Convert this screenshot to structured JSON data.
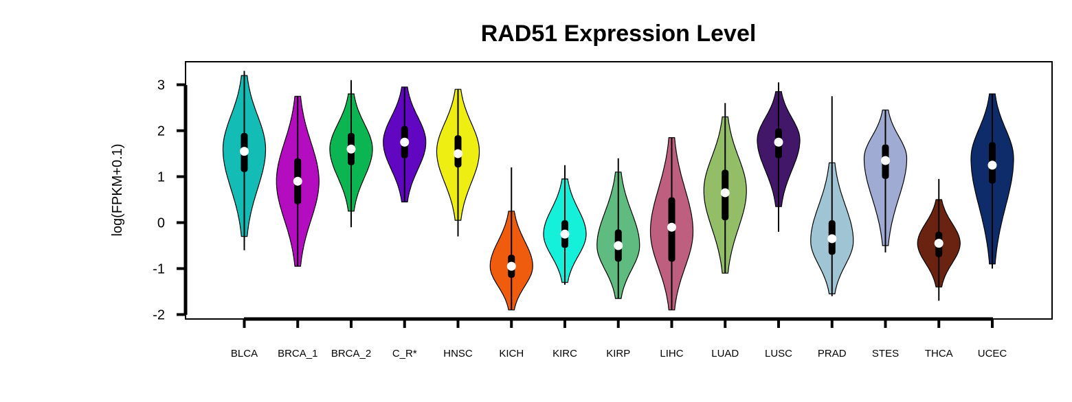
{
  "chart_data": {
    "type": "violin",
    "title": "RAD51 Expression Level",
    "ylabel": "log(FPKM+0.1)",
    "xlabel": "",
    "ylim": [
      -2,
      3
    ],
    "yticks": [
      "3",
      "2",
      "1",
      "0",
      "-1",
      "-2"
    ],
    "categories": [
      "BLCA",
      "BRCA_1",
      "BRCA_2",
      "C_R*",
      "HNSC",
      "KICH",
      "KIRC",
      "KIRP",
      "LIHC",
      "LUAD",
      "LUSC",
      "PRAD",
      "STES",
      "THCA",
      "UCEC"
    ],
    "colors": [
      "#14bcb6",
      "#b40cbf",
      "#0ab552",
      "#6107c2",
      "#eeee12",
      "#f05c0e",
      "#14f0d9",
      "#5fbb80",
      "#be5f80",
      "#93bd66",
      "#421668",
      "#9fc4d3",
      "#9fabd3",
      "#6a2310",
      "#0e2c6a"
    ],
    "violins": [
      {
        "min": -0.6,
        "max": 3.3,
        "q1": 1.1,
        "q3": 1.95,
        "median": 1.55,
        "vmin": -0.3,
        "vmax": 3.2,
        "mode": 1.6
      },
      {
        "min": -0.95,
        "max": 2.75,
        "q1": 0.4,
        "q3": 1.4,
        "median": 0.9,
        "vmin": -0.95,
        "vmax": 2.75,
        "mode": 0.9
      },
      {
        "min": -0.1,
        "max": 3.1,
        "q1": 1.25,
        "q3": 1.95,
        "median": 1.6,
        "vmin": 0.25,
        "vmax": 2.8,
        "mode": 1.6
      },
      {
        "min": 0.45,
        "max": 2.95,
        "q1": 1.4,
        "q3": 2.1,
        "median": 1.75,
        "vmin": 0.45,
        "vmax": 2.95,
        "mode": 1.75
      },
      {
        "min": -0.3,
        "max": 2.9,
        "q1": 1.2,
        "q3": 1.9,
        "median": 1.5,
        "vmin": 0.05,
        "vmax": 2.9,
        "mode": 1.55
      },
      {
        "min": -1.9,
        "max": 1.2,
        "q1": -1.2,
        "q3": -0.7,
        "median": -0.95,
        "vmin": -1.9,
        "vmax": 0.25,
        "mode": -0.95
      },
      {
        "min": -1.35,
        "max": 1.25,
        "q1": -0.55,
        "q3": 0.05,
        "median": -0.25,
        "vmin": -1.3,
        "vmax": 0.95,
        "mode": -0.25
      },
      {
        "min": -1.65,
        "max": 1.4,
        "q1": -0.85,
        "q3": -0.15,
        "median": -0.5,
        "vmin": -1.65,
        "vmax": 1.1,
        "mode": -0.5
      },
      {
        "min": -1.9,
        "max": 1.85,
        "q1": -0.85,
        "q3": 0.55,
        "median": -0.1,
        "vmin": -1.9,
        "vmax": 1.85,
        "mode": -0.2
      },
      {
        "min": -1.1,
        "max": 2.6,
        "q1": 0.05,
        "q3": 1.15,
        "median": 0.65,
        "vmin": -1.1,
        "vmax": 2.3,
        "mode": 0.7
      },
      {
        "min": -0.2,
        "max": 3.05,
        "q1": 1.4,
        "q3": 2.05,
        "median": 1.75,
        "vmin": 0.35,
        "vmax": 2.85,
        "mode": 1.8
      },
      {
        "min": -1.6,
        "max": 2.75,
        "q1": -0.7,
        "q3": 0.05,
        "median": -0.35,
        "vmin": -1.55,
        "vmax": 1.3,
        "mode": -0.4
      },
      {
        "min": -0.65,
        "max": 2.45,
        "q1": 0.95,
        "q3": 1.7,
        "median": 1.35,
        "vmin": -0.5,
        "vmax": 2.45,
        "mode": 1.4
      },
      {
        "min": -1.7,
        "max": 0.95,
        "q1": -0.75,
        "q3": -0.2,
        "median": -0.45,
        "vmin": -1.4,
        "vmax": 0.5,
        "mode": -0.45
      },
      {
        "min": -1.0,
        "max": 2.8,
        "q1": 0.85,
        "q3": 1.75,
        "median": 1.25,
        "vmin": -0.9,
        "vmax": 2.8,
        "mode": 1.4
      }
    ]
  }
}
